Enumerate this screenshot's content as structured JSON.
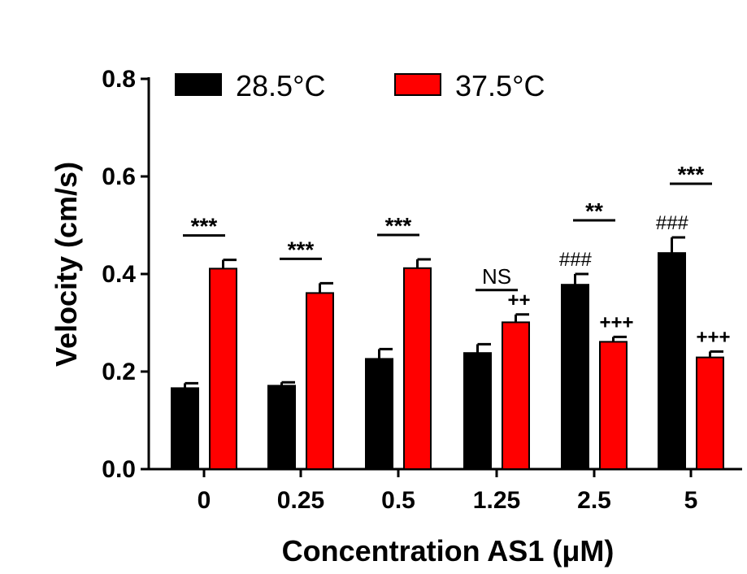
{
  "chart_data": {
    "type": "bar",
    "categories": [
      "0",
      "0.25",
      "0.5",
      "1.25",
      "2.5",
      "5"
    ],
    "series": [
      {
        "name": "28.5°C",
        "color": "#000000",
        "values": [
          0.166,
          0.171,
          0.226,
          0.238,
          0.378,
          0.443
        ],
        "errors": [
          0.01,
          0.007,
          0.02,
          0.018,
          0.022,
          0.032
        ]
      },
      {
        "name": "37.5°C",
        "color": "#ff0000",
        "values": [
          0.411,
          0.361,
          0.412,
          0.301,
          0.261,
          0.229
        ],
        "errors": [
          0.018,
          0.02,
          0.018,
          0.016,
          0.01,
          0.012
        ]
      }
    ],
    "xlabel": "Concentration AS1 (μM)",
    "ylabel": "Velocity (cm/s)",
    "ylim": [
      0.0,
      0.8
    ],
    "yticks": [
      "0.0",
      "0.2",
      "0.4",
      "0.6",
      "0.8"
    ],
    "grid": false,
    "legend_position": "top",
    "annotations": {
      "comparison": [
        "***",
        "***",
        "***",
        "NS",
        "**",
        "***"
      ],
      "black_bar_marks": [
        "",
        "",
        "",
        "",
        "###",
        "###"
      ],
      "red_bar_marks": [
        "",
        "",
        "",
        "++",
        "+++",
        "+++"
      ]
    }
  }
}
